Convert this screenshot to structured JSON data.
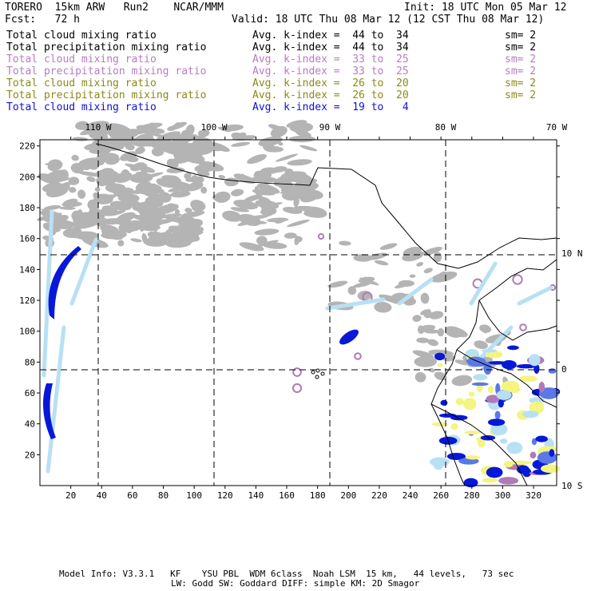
{
  "header": {
    "title_left": "TORERO  15km ARW   Run2    NCAR/MMM",
    "init": "Init: 18 UTC Mon 05 Mar 12",
    "fcst": "Fcst:   72 h",
    "valid": "Valid: 18 UTC Thu 08 Mar 12 (12 CST Thu 08 Mar 12)"
  },
  "fields": [
    {
      "label": "Total cloud mixing ratio",
      "avg": "Avg. k-index =  44 to  34",
      "sm": "sm= 2",
      "color": "#000000"
    },
    {
      "label": "Total precipitation mixing ratio",
      "avg": "Avg. k-index =  44 to  34",
      "sm": "sm= 2",
      "color": "#000000"
    },
    {
      "label": "Total cloud mixing ratio",
      "avg": "Avg. k-index =  33 to  25",
      "sm": "sm= 2",
      "color": "#b87cc0"
    },
    {
      "label": "Total precipitation mixing ratio",
      "avg": "Avg. k-index =  33 to  25",
      "sm": "sm= 2",
      "color": "#b87cc0"
    },
    {
      "label": "Total cloud mixing ratio",
      "avg": "Avg. k-index =  26 to  20",
      "sm": "sm= 2",
      "color": "#8a8a1a"
    },
    {
      "label": "Total precipitation mixing ratio",
      "avg": "Avg. k-index =  26 to  20",
      "sm": "sm= 2",
      "color": "#8a8a1a"
    },
    {
      "label": "Total cloud mixing ratio",
      "avg": "Avg. k-index =  19 to   4",
      "sm": "",
      "color": "#1010d8"
    }
  ],
  "map": {
    "lon_labels": [
      "110 W",
      "100 W",
      "90 W",
      "80 W",
      "70 W"
    ],
    "lat_labels": [
      "10 N",
      "0",
      "10 S"
    ],
    "x_ticks": [
      "20",
      "40",
      "60",
      "80",
      "100",
      "120",
      "140",
      "160",
      "180",
      "200",
      "220",
      "240",
      "260",
      "280",
      "300",
      "320"
    ],
    "y_ticks": [
      "220",
      "200",
      "180",
      "160",
      "140",
      "120",
      "100",
      "80",
      "60",
      "40",
      "20"
    ],
    "colors": {
      "cloud_gray": "#b4b4b4",
      "purple": "#b07ab8",
      "light_blue": "#b8e0f4",
      "mid_blue": "#5a78e8",
      "dark_blue": "#0818d8",
      "yellow": "#f4f480",
      "coast": "#000000"
    }
  },
  "footer": {
    "line1": "Model Info: V3.3.1   KF    YSU PBL  WDM 6class  Noah LSM  15 km,   44 levels,   73 sec",
    "line2": "LW: Godd SW: Goddard DIFF: simple KM: 2D Smagor"
  }
}
